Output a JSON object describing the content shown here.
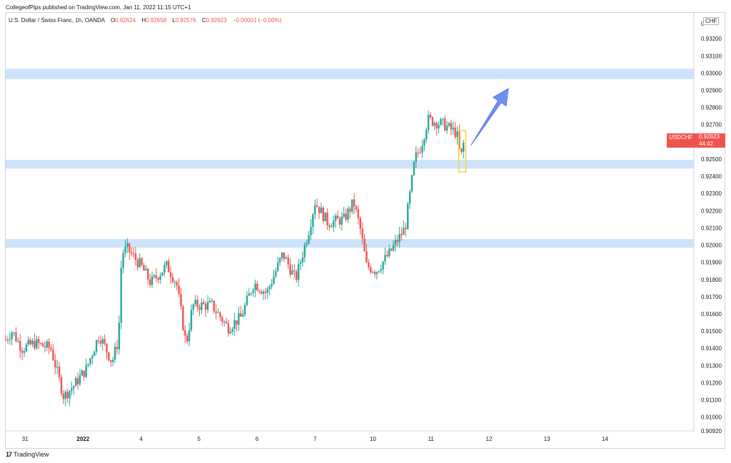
{
  "publisher": "CollegeofPips published on TradingView.com, Jan 11, 2022 11:15 UTC+1",
  "legend": {
    "symbol_desc": "U.S. Dollar / Swiss Franc, 1h, OANDA",
    "open_label": "O",
    "open": "0.92624",
    "high_label": "H",
    "high": "0.92658",
    "low_label": "L",
    "low": "0.92576",
    "close_label": "C",
    "close": "0.92623",
    "change": "−0.00001 (−0.00%)"
  },
  "currency": "CHF",
  "last_price": {
    "symbol": "USDCHF",
    "price": "0.92623",
    "countdown": "44:42"
  },
  "footer": {
    "brand": "TradingView",
    "icon": "tradingview-logo-icon"
  },
  "colors": {
    "up": "#26a69a",
    "down": "#ef5350",
    "zone": "#cde3fb",
    "arrow": "#6f8ff2",
    "highlight": "#f0d43a"
  },
  "chart_data": {
    "type": "candlestick",
    "title": "U.S. Dollar / Swiss Franc, 1h, OANDA",
    "ylim": [
      0.9092,
      0.9335
    ],
    "y_ticks": [
      "0.93200",
      "0.93100",
      "0.93000",
      "0.92900",
      "0.92800",
      "0.92700",
      "0.92600",
      "0.92500",
      "0.92400",
      "0.92300",
      "0.92200",
      "0.92100",
      "0.92000",
      "0.91900",
      "0.91800",
      "0.91700",
      "0.91600",
      "0.91500",
      "0.91400",
      "0.91300",
      "0.91200",
      "0.91100",
      "0.91000",
      "0.90920"
    ],
    "x_ticks": [
      {
        "label": "31",
        "t": 30
      },
      {
        "label": "2022",
        "t": 120
      },
      {
        "label": "4",
        "t": 210
      },
      {
        "label": "5",
        "t": 300
      },
      {
        "label": "6",
        "t": 390
      },
      {
        "label": "7",
        "t": 480
      },
      {
        "label": "10",
        "t": 570
      },
      {
        "label": "11",
        "t": 660
      },
      {
        "label": "12",
        "t": 750
      },
      {
        "label": "13",
        "t": 840
      },
      {
        "label": "14",
        "t": 930
      }
    ],
    "zones": [
      {
        "from": 0.92965,
        "to": 0.93025
      },
      {
        "from": 0.92445,
        "to": 0.92495
      },
      {
        "from": 0.91985,
        "to": 0.92035
      }
    ],
    "anchors": [
      [
        0,
        0.9145
      ],
      [
        10,
        0.915
      ],
      [
        25,
        0.914
      ],
      [
        45,
        0.9143
      ],
      [
        70,
        0.914
      ],
      [
        90,
        0.9112
      ],
      [
        105,
        0.9118
      ],
      [
        125,
        0.9128
      ],
      [
        145,
        0.9148
      ],
      [
        165,
        0.9132
      ],
      [
        175,
        0.9145
      ],
      [
        180,
        0.9195
      ],
      [
        188,
        0.9198
      ],
      [
        210,
        0.9188
      ],
      [
        225,
        0.9178
      ],
      [
        250,
        0.9188
      ],
      [
        265,
        0.9178
      ],
      [
        280,
        0.9142
      ],
      [
        290,
        0.9165
      ],
      [
        320,
        0.9165
      ],
      [
        345,
        0.9152
      ],
      [
        365,
        0.9158
      ],
      [
        385,
        0.9178
      ],
      [
        405,
        0.9172
      ],
      [
        430,
        0.9195
      ],
      [
        450,
        0.918
      ],
      [
        470,
        0.9208
      ],
      [
        480,
        0.9225
      ],
      [
        500,
        0.9213
      ],
      [
        525,
        0.9215
      ],
      [
        540,
        0.9225
      ],
      [
        550,
        0.921
      ],
      [
        560,
        0.9188
      ],
      [
        575,
        0.9185
      ],
      [
        595,
        0.9195
      ],
      [
        620,
        0.921
      ],
      [
        635,
        0.925
      ],
      [
        645,
        0.9258
      ],
      [
        655,
        0.9273
      ],
      [
        680,
        0.927
      ],
      [
        700,
        0.9265
      ],
      [
        706,
        0.925
      ],
      [
        712,
        0.92623
      ]
    ],
    "annotations": [
      {
        "type": "rectangle",
        "t_from": 703,
        "t_to": 714,
        "from": 0.92425,
        "to": 0.92665
      },
      {
        "type": "arrow",
        "from": [
          722,
          0.9258
        ],
        "to": [
          780,
          0.9291
        ]
      }
    ]
  }
}
